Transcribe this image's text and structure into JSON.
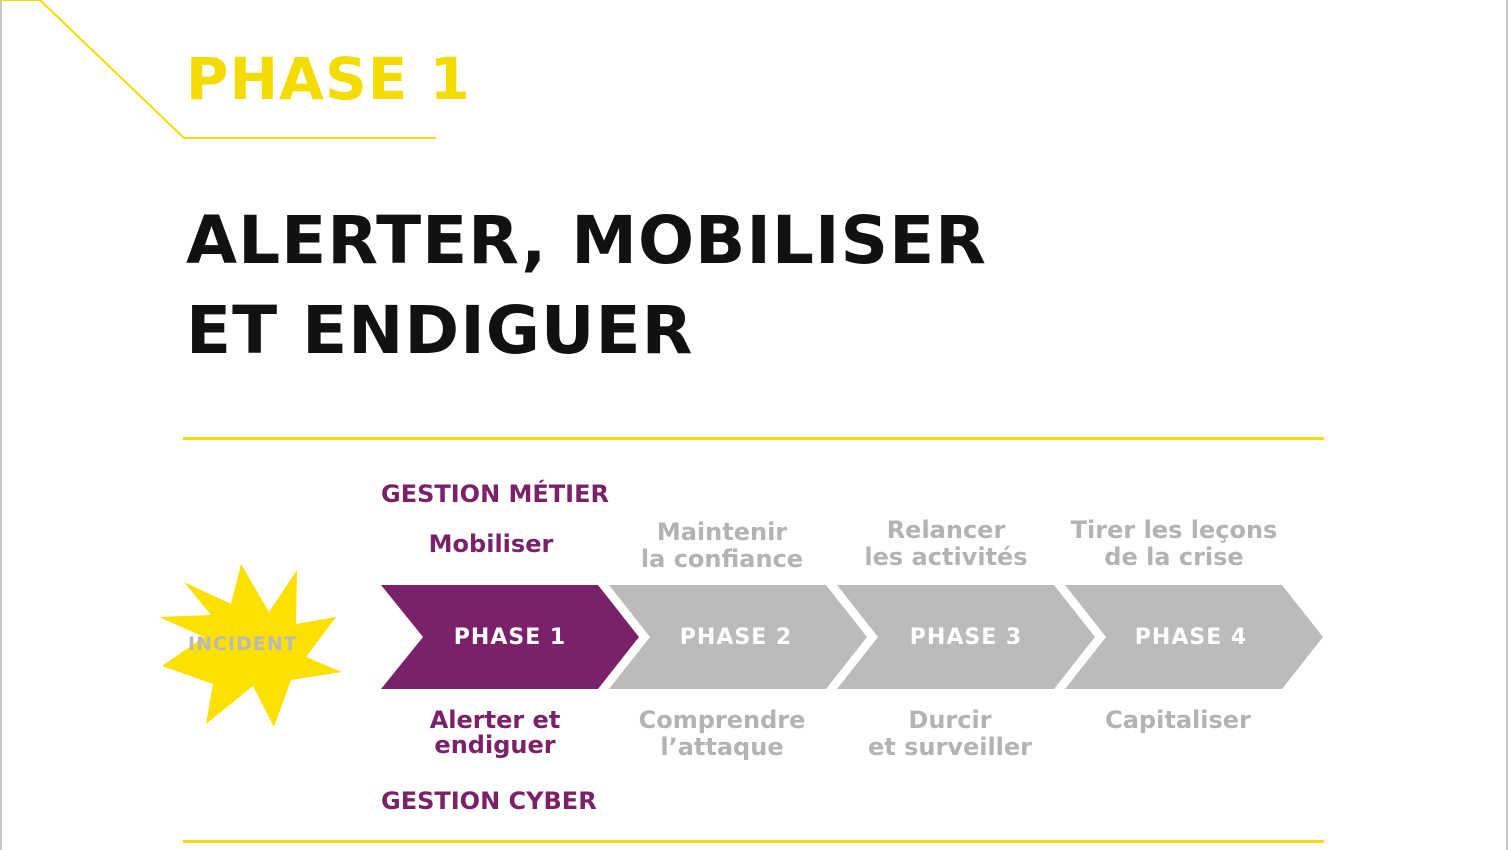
{
  "header": {
    "phase_label": "PHASE 1"
  },
  "title": {
    "line1": "ALERTER, MOBILISER",
    "line2": "ET ENDIGUER"
  },
  "diagram": {
    "top_label": "GESTION MÉTIER",
    "bottom_label": "GESTION CYBER",
    "incident_label": "INCIDENT",
    "phases": [
      {
        "label": "PHASE 1",
        "top": [
          "",
          "Mobiliser"
        ],
        "bottom": [
          "Alerter et",
          "endiguer"
        ],
        "active": true
      },
      {
        "label": "PHASE 2",
        "top": [
          "Maintenir",
          "la confiance"
        ],
        "bottom": [
          "Comprendre",
          "l’attaque"
        ],
        "active": false
      },
      {
        "label": "PHASE 3",
        "top": [
          "Relancer",
          "les activités"
        ],
        "bottom": [
          "Durcir",
          "et surveiller"
        ],
        "active": false
      },
      {
        "label": "PHASE 4",
        "top": [
          "Tirer les leçons",
          "de la crise"
        ],
        "bottom": [
          "Capitaliser",
          ""
        ],
        "active": false
      }
    ]
  },
  "colors": {
    "accent_yellow": "#f4dc00",
    "active_purple": "#7a2169",
    "inactive_gray": "#b3b3b3",
    "title_black": "#111111"
  }
}
